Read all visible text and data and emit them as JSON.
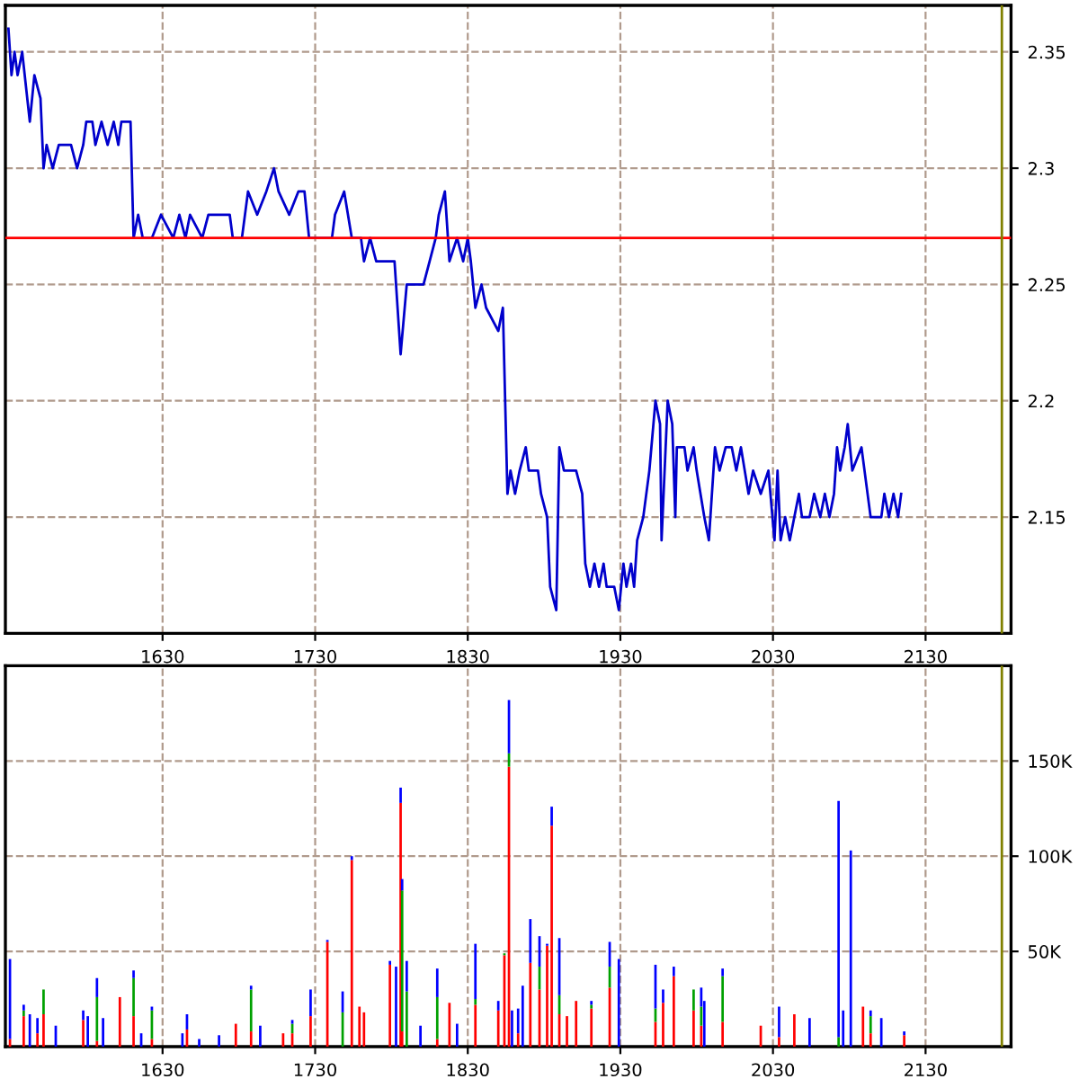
{
  "chart_data": [
    {
      "type": "line",
      "color": "#0000cc",
      "x": [
        1529,
        1531,
        1533,
        1535,
        1538,
        1543,
        1546,
        1550,
        1552,
        1554,
        1558,
        1562,
        1570,
        1574,
        1578,
        1580,
        1584,
        1586,
        1590,
        1594,
        1598,
        1601,
        1603,
        1609,
        1611,
        1614,
        1617,
        1623,
        1629,
        1637,
        1641,
        1645,
        1648,
        1656,
        1660,
        1674,
        1676,
        1682,
        1686,
        1692,
        1698,
        1703,
        1706,
        1713,
        1719,
        1723,
        1726,
        1741,
        1743,
        1749,
        1754,
        1760,
        1762,
        1766,
        1770,
        1774,
        1782,
        1786,
        1790,
        1801,
        1805,
        1809,
        1811,
        1815,
        1818,
        1823,
        1827,
        1830,
        1832,
        1835,
        1839,
        1842,
        1850,
        1853,
        1856,
        1858,
        1861,
        1864,
        1868,
        1870,
        1876,
        1878,
        1882,
        1884,
        1888,
        1890,
        1893,
        1901,
        1905,
        1907,
        1910,
        1913,
        1916,
        1919,
        1921,
        1926,
        1929,
        1932,
        1934,
        1937,
        1939,
        1941,
        1945,
        1949,
        1953,
        1956,
        1957,
        1961,
        1964,
        1966,
        1967,
        1972,
        1974,
        1978,
        1980,
        1985,
        1988,
        1992,
        1995,
        1999,
        2003,
        2006,
        2009,
        2014,
        2017,
        2022,
        2027,
        2031,
        2033,
        2035,
        2038,
        2041,
        2044,
        2047,
        2049,
        2054,
        2057,
        2061,
        2064,
        2067,
        2070,
        2072,
        2074,
        2077,
        2079,
        2082,
        2088,
        2090,
        2094,
        2101,
        2103,
        2106,
        2109,
        2112,
        2114
      ],
      "values": [
        2.36,
        2.34,
        2.35,
        2.34,
        2.35,
        2.32,
        2.34,
        2.33,
        2.3,
        2.31,
        2.3,
        2.31,
        2.31,
        2.3,
        2.31,
        2.32,
        2.32,
        2.31,
        2.32,
        2.31,
        2.32,
        2.31,
        2.32,
        2.32,
        2.27,
        2.28,
        2.27,
        2.27,
        2.28,
        2.27,
        2.28,
        2.27,
        2.28,
        2.27,
        2.28,
        2.28,
        2.27,
        2.27,
        2.29,
        2.28,
        2.29,
        2.3,
        2.29,
        2.28,
        2.29,
        2.29,
        2.27,
        2.27,
        2.28,
        2.29,
        2.27,
        2.27,
        2.26,
        2.27,
        2.26,
        2.26,
        2.26,
        2.22,
        2.25,
        2.25,
        2.26,
        2.27,
        2.28,
        2.29,
        2.26,
        2.27,
        2.26,
        2.27,
        2.26,
        2.24,
        2.25,
        2.24,
        2.23,
        2.24,
        2.16,
        2.17,
        2.16,
        2.17,
        2.18,
        2.17,
        2.17,
        2.16,
        2.15,
        2.12,
        2.11,
        2.18,
        2.17,
        2.17,
        2.16,
        2.13,
        2.12,
        2.13,
        2.12,
        2.13,
        2.12,
        2.12,
        2.11,
        2.13,
        2.12,
        2.13,
        2.12,
        2.14,
        2.15,
        2.17,
        2.2,
        2.19,
        2.14,
        2.2,
        2.19,
        2.15,
        2.18,
        2.18,
        2.17,
        2.18,
        2.17,
        2.15,
        2.14,
        2.18,
        2.17,
        2.18,
        2.18,
        2.17,
        2.18,
        2.16,
        2.17,
        2.16,
        2.17,
        2.14,
        2.17,
        2.14,
        2.15,
        2.14,
        2.15,
        2.16,
        2.15,
        2.15,
        2.16,
        2.15,
        2.16,
        2.15,
        2.16,
        2.18,
        2.17,
        2.18,
        2.19,
        2.17,
        2.18,
        2.17,
        2.15,
        2.15,
        2.16,
        2.15,
        2.16,
        2.15,
        2.16
      ],
      "xlim": [
        1527,
        2186
      ],
      "xticks": [
        1630,
        1730,
        1830,
        1930,
        2030,
        2130
      ],
      "ylim": [
        2.1,
        2.37
      ],
      "yticks": [
        2.15,
        2.2,
        2.25,
        2.3,
        2.35
      ],
      "grid": true,
      "ref_lines": [
        {
          "axis": "y",
          "value": 2.27,
          "color": "#ff0000"
        },
        {
          "axis": "x",
          "value": 2180,
          "color": "#808000"
        }
      ]
    },
    {
      "type": "bar",
      "stacked": true,
      "x": [
        1530,
        1539,
        1543,
        1548,
        1552,
        1560,
        1578,
        1581,
        1587,
        1591,
        1602,
        1611,
        1616,
        1623,
        1643,
        1646,
        1654,
        1667,
        1678,
        1688,
        1694,
        1709,
        1715,
        1727,
        1738,
        1748,
        1754,
        1759,
        1762,
        1779,
        1783,
        1786,
        1787,
        1790,
        1799,
        1810,
        1818,
        1823,
        1835,
        1850,
        1854,
        1857,
        1859,
        1863,
        1866,
        1871,
        1877,
        1882,
        1885,
        1890,
        1895,
        1901,
        1911,
        1923,
        1929,
        1953,
        1958,
        1965,
        1978,
        1983,
        1985,
        1997,
        2022,
        2034,
        2044,
        2054,
        2073,
        2076,
        2081,
        2089,
        2094,
        2101,
        2116
      ],
      "series": [
        {
          "color": "#ff0000",
          "values": [
            4,
            16,
            0,
            7,
            17,
            0,
            14,
            0,
            3,
            0,
            26,
            16,
            0,
            4,
            0,
            9,
            0,
            0,
            12,
            8,
            0,
            7,
            7,
            16,
            55,
            0,
            98,
            21,
            18,
            43,
            0,
            128,
            8,
            0,
            0,
            4,
            23,
            0,
            22,
            19,
            48,
            147,
            0,
            7,
            0,
            44,
            30,
            53,
            116,
            17,
            16,
            24,
            20,
            31,
            0,
            13,
            23,
            37,
            19,
            11,
            0,
            13,
            11,
            5,
            17,
            0,
            0,
            0,
            0,
            21,
            7,
            0,
            6
          ]
        },
        {
          "color": "#00a000",
          "values": [
            0,
            3,
            0,
            0,
            13,
            0,
            0,
            0,
            23,
            0,
            0,
            20,
            0,
            15,
            0,
            0,
            0,
            0,
            0,
            22,
            0,
            0,
            5,
            0,
            0,
            18,
            0,
            0,
            0,
            0,
            0,
            0,
            74,
            29,
            0,
            22,
            0,
            0,
            3,
            0,
            1,
            7,
            0,
            0,
            0,
            0,
            12,
            0,
            0,
            10,
            0,
            0,
            2,
            11,
            0,
            7,
            0,
            0,
            11,
            10,
            0,
            24,
            0,
            0,
            0,
            0,
            5,
            0,
            0,
            0,
            9,
            0,
            0
          ]
        },
        {
          "color": "#0000ff",
          "values": [
            42,
            3,
            17,
            8,
            0,
            11,
            5,
            16,
            10,
            15,
            0,
            4,
            7,
            2,
            7,
            8,
            4,
            6,
            0,
            2,
            11,
            0,
            2,
            14,
            1,
            11,
            2,
            0,
            0,
            2,
            42,
            8,
            6,
            16,
            11,
            15,
            0,
            12,
            29,
            5,
            0,
            28,
            19,
            13,
            32,
            23,
            16,
            1,
            10,
            30,
            0,
            0,
            2,
            13,
            46,
            23,
            7,
            5,
            0,
            10,
            24,
            4,
            0,
            16,
            0,
            15,
            124,
            19,
            103,
            0,
            3,
            15,
            2
          ]
        }
      ],
      "xlim": [
        1527,
        2186
      ],
      "xticks": [
        1630,
        1730,
        1830,
        1930,
        2030,
        2130
      ],
      "ylim": [
        0,
        200
      ],
      "yticks": [
        {
          "value": 50,
          "label": "50K"
        },
        {
          "value": 100,
          "label": "100K"
        },
        {
          "value": 150,
          "label": "150K"
        }
      ],
      "grid": true,
      "ref_lines": [
        {
          "axis": "x",
          "value": 2180,
          "color": "#808000"
        }
      ]
    }
  ]
}
